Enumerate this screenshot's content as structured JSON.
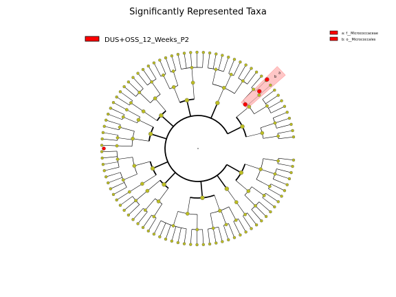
{
  "chart_data": {
    "type": "cladogram",
    "title": "Significantly Represented Taxa",
    "legend": [
      {
        "label": "DUS+OSS_12_Weeks_P2",
        "color": "#ff0000"
      }
    ],
    "highlighted_taxa": [
      {
        "key": "a",
        "taxon": "f__Micrococcaceae",
        "rank": "family",
        "group": "DUS+OSS_12_Weeks_P2",
        "label": "a: f__Micrococcaceae"
      },
      {
        "key": "b",
        "taxon": "o__Micrococcales",
        "rank": "order",
        "group": "DUS+OSS_12_Weeks_P2",
        "label": "b: o__Micrococcales"
      }
    ],
    "node_color_nonsignificant": "#bcbd22",
    "node_color_significant": "#ff0000",
    "clade_wedge_color": "#ffb3b3",
    "grid": false
  }
}
